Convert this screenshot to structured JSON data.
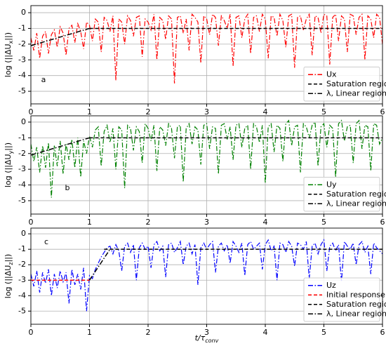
{
  "chart_data": [
    {
      "type": "line",
      "annotation": "a",
      "ylabel": [
        "log (||ΔU",
        "x",
        "||)"
      ],
      "grid": true,
      "legend": "lower right",
      "xlim": [
        0,
        6
      ],
      "ylim": [
        -5.8,
        0.45
      ],
      "xticks": [
        0,
        1,
        2,
        3,
        4,
        5,
        6
      ],
      "yticks": [
        -5,
        -4,
        -3,
        -2,
        -1,
        0
      ],
      "x": [
        0,
        0.05,
        0.1,
        0.15,
        0.2,
        0.25,
        0.3,
        0.35,
        0.4,
        0.45,
        0.5,
        0.55,
        0.6,
        0.65,
        0.7,
        0.75,
        0.8,
        0.85,
        0.9,
        0.95,
        1,
        1.05,
        1.1,
        1.15,
        1.2,
        1.25,
        1.3,
        1.35,
        1.4,
        1.45,
        1.5,
        1.55,
        1.6,
        1.65,
        1.7,
        1.75,
        1.8,
        1.85,
        1.9,
        1.95,
        2,
        2.05,
        2.1,
        2.15,
        2.2,
        2.25,
        2.3,
        2.35,
        2.4,
        2.45,
        2.5,
        2.55,
        2.6,
        2.65,
        2.7,
        2.75,
        2.8,
        2.85,
        2.9,
        2.95,
        3,
        3.05,
        3.1,
        3.15,
        3.2,
        3.25,
        3.3,
        3.35,
        3.4,
        3.45,
        3.5,
        3.55,
        3.6,
        3.65,
        3.7,
        3.75,
        3.8,
        3.85,
        3.9,
        3.95,
        4,
        4.05,
        4.1,
        4.15,
        4.2,
        4.25,
        4.3,
        4.35,
        4.4,
        4.45,
        4.5,
        4.55,
        4.6,
        4.65,
        4.7,
        4.75,
        4.8,
        4.85,
        4.9,
        4.95,
        5,
        5.05,
        5.1,
        5.15,
        5.2,
        5.25,
        5.3,
        5.35,
        5.4,
        5.45,
        5.5,
        5.55,
        5.6,
        5.65,
        5.7,
        5.75,
        5.8,
        5.85,
        5.9,
        5.95,
        6
      ],
      "series": [
        {
          "name": "Ux",
          "color": "#ff0000",
          "dash": "dashdot",
          "values": [
            -1.6,
            -2.4,
            -1.3,
            -2.9,
            -1.5,
            -1.2,
            -2.6,
            -1.4,
            -1.1,
            -2.2,
            -0.9,
            -1.3,
            -2.7,
            -1.0,
            -0.8,
            -1.9,
            -0.7,
            -1.2,
            -2.3,
            -0.6,
            -0.8,
            -1.8,
            -0.4,
            -0.6,
            -2.5,
            -0.3,
            -0.5,
            -1.2,
            -0.2,
            -4.3,
            -0.4,
            -0.6,
            -2.0,
            -0.2,
            -0.5,
            -1.5,
            -0.3,
            -0.2,
            -2.8,
            -0.4,
            -0.6,
            -1.1,
            -0.1,
            -3.0,
            -0.3,
            -0.5,
            -1.7,
            -0.2,
            -0.4,
            -4.5,
            -0.3,
            -0.2,
            -1.3,
            -0.4,
            -2.4,
            -0.1,
            -0.3,
            -0.6,
            -3.2,
            -0.2,
            -0.4,
            -1.4,
            -0.1,
            -0.3,
            -2.1,
            -0.2,
            -0.5,
            -1.0,
            -0.1,
            -3.4,
            -0.3,
            -0.2,
            -1.6,
            -0.4,
            -0.1,
            -2.6,
            -0.3,
            -0.2,
            -1.2,
            -0.1,
            -0.4,
            -2.9,
            -0.2,
            -0.3,
            -1.5,
            -0.1,
            -0.5,
            -2.2,
            -0.2,
            -0.1,
            -3.5,
            -0.3,
            -0.2,
            -1.1,
            -0.4,
            -0.1,
            -2.7,
            -0.2,
            -0.3,
            -1.3,
            -0.1,
            -0.2,
            -3.3,
            -0.3,
            -0.1,
            -1.8,
            -0.2,
            -0.4,
            -2.5,
            -0.1,
            -0.2,
            -1.4,
            -0.3,
            -0.1,
            -3.0,
            -0.2,
            -0.4,
            -1.6,
            -0.1,
            -0.3,
            -2.0
          ]
        },
        {
          "name": "Saturation region",
          "color": "#000000",
          "dash": "dashed",
          "x": [
            1,
            6
          ],
          "values": [
            -1,
            -1
          ]
        },
        {
          "name": "λ, Linear region",
          "color": "#000000",
          "dash": "dashdot",
          "x": [
            0,
            1
          ],
          "values": [
            -2.1,
            -1
          ]
        }
      ]
    },
    {
      "type": "line",
      "annotation": "b",
      "ylabel": [
        "log (||ΔU",
        "y",
        "||)"
      ],
      "grid": true,
      "legend": "lower right",
      "xlim": [
        0,
        6
      ],
      "ylim": [
        -5.85,
        0.4
      ],
      "xticks": [
        0,
        1,
        2,
        3,
        4,
        5,
        6
      ],
      "yticks": [
        -5,
        -4,
        -3,
        -2,
        -1,
        0
      ],
      "x": [
        0,
        0.05,
        0.1,
        0.15,
        0.2,
        0.25,
        0.3,
        0.35,
        0.4,
        0.45,
        0.5,
        0.55,
        0.6,
        0.65,
        0.7,
        0.75,
        0.8,
        0.85,
        0.9,
        0.95,
        1,
        1.05,
        1.1,
        1.15,
        1.2,
        1.25,
        1.3,
        1.35,
        1.4,
        1.45,
        1.5,
        1.55,
        1.6,
        1.65,
        1.7,
        1.75,
        1.8,
        1.85,
        1.9,
        1.95,
        2,
        2.05,
        2.1,
        2.15,
        2.2,
        2.25,
        2.3,
        2.35,
        2.4,
        2.45,
        2.5,
        2.55,
        2.6,
        2.65,
        2.7,
        2.75,
        2.8,
        2.85,
        2.9,
        2.95,
        3,
        3.05,
        3.1,
        3.15,
        3.2,
        3.25,
        3.3,
        3.35,
        3.4,
        3.45,
        3.5,
        3.55,
        3.6,
        3.65,
        3.7,
        3.75,
        3.8,
        3.85,
        3.9,
        3.95,
        4,
        4.05,
        4.1,
        4.15,
        4.2,
        4.25,
        4.3,
        4.35,
        4.4,
        4.45,
        4.5,
        4.55,
        4.6,
        4.65,
        4.7,
        4.75,
        4.8,
        4.85,
        4.9,
        4.95,
        5,
        5.05,
        5.1,
        5.15,
        5.2,
        5.25,
        5.3,
        5.35,
        5.4,
        5.45,
        5.5,
        5.55,
        5.6,
        5.65,
        5.7,
        5.75,
        5.8,
        5.85,
        5.9,
        5.95,
        6
      ],
      "series": [
        {
          "name": "Uy",
          "color": "#008000",
          "dash": "dashdot",
          "values": [
            -1.4,
            -2.5,
            -1.6,
            -3.2,
            -1.5,
            -2.9,
            -1.3,
            -4.8,
            -1.5,
            -2.8,
            -1.2,
            -3.3,
            -1.4,
            -2.4,
            -1.1,
            -2.9,
            -1.0,
            -3.5,
            -1.2,
            -2.0,
            -0.9,
            -1.6,
            -0.5,
            -0.3,
            -2.8,
            -0.6,
            -0.2,
            -1.3,
            -0.4,
            -3.0,
            -0.3,
            -0.5,
            -4.2,
            -0.2,
            -0.4,
            -1.8,
            -0.3,
            -0.6,
            -2.6,
            -0.1,
            -0.4,
            -1.2,
            -0.2,
            -3.1,
            -0.3,
            -0.5,
            -1.5,
            -0.1,
            -0.4,
            -2.3,
            -0.3,
            -0.2,
            -3.8,
            -0.4,
            -0.1,
            -1.4,
            -0.3,
            -0.5,
            -2.7,
            -0.2,
            -0.1,
            -1.7,
            -0.3,
            -0.4,
            -3.3,
            -0.2,
            -0.1,
            -1.1,
            -0.3,
            -2.4,
            -0.2,
            -0.1,
            -1.6,
            -0.4,
            -0.2,
            -3.0,
            -0.1,
            -0.3,
            -1.3,
            -0.2,
            -3.9,
            -0.3,
            -0.1,
            -1.9,
            -0.2,
            -0.4,
            -2.5,
            -0.1,
            0.1,
            -1.5,
            -0.3,
            -0.2,
            -3.2,
            -0.1,
            -0.3,
            -1.0,
            -0.2,
            0.0,
            -2.8,
            -0.3,
            -0.1,
            -1.6,
            -0.2,
            -0.4,
            -3.5,
            -0.1,
            0.1,
            -1.2,
            -0.3,
            -0.2,
            -2.6,
            -0.1,
            0.1,
            -1.7,
            -0.2,
            -0.3,
            -3.1,
            -0.1,
            -0.2,
            -1.4,
            -1.0
          ]
        },
        {
          "name": "Saturation region",
          "color": "#000000",
          "dash": "dashed",
          "x": [
            1,
            6
          ],
          "values": [
            -1,
            -1
          ]
        },
        {
          "name": "λ, Linear region",
          "color": "#000000",
          "dash": "dashdot",
          "x": [
            0,
            1
          ],
          "values": [
            -2.1,
            -1
          ]
        }
      ]
    },
    {
      "type": "line",
      "annotation": "c",
      "ylabel": [
        "log (||ΔU",
        "z",
        "||)"
      ],
      "xlabel": [
        "t/τ",
        "conv"
      ],
      "grid": true,
      "legend": "lower right",
      "xlim": [
        0,
        6
      ],
      "ylim": [
        -5.85,
        0.37
      ],
      "xticks": [
        0,
        1,
        2,
        3,
        4,
        5,
        6
      ],
      "yticks": [
        -5,
        -4,
        -3,
        -2,
        -1,
        0
      ],
      "x": [
        0,
        0.05,
        0.1,
        0.15,
        0.2,
        0.25,
        0.3,
        0.35,
        0.4,
        0.45,
        0.5,
        0.55,
        0.6,
        0.65,
        0.7,
        0.75,
        0.8,
        0.85,
        0.9,
        0.95,
        1,
        1.05,
        1.1,
        1.15,
        1.2,
        1.25,
        1.3,
        1.35,
        1.4,
        1.45,
        1.5,
        1.55,
        1.6,
        1.65,
        1.7,
        1.75,
        1.8,
        1.85,
        1.9,
        1.95,
        2,
        2.05,
        2.1,
        2.15,
        2.2,
        2.25,
        2.3,
        2.35,
        2.4,
        2.45,
        2.5,
        2.55,
        2.6,
        2.65,
        2.7,
        2.75,
        2.8,
        2.85,
        2.9,
        2.95,
        3,
        3.05,
        3.1,
        3.15,
        3.2,
        3.25,
        3.3,
        3.35,
        3.4,
        3.45,
        3.5,
        3.55,
        3.6,
        3.65,
        3.7,
        3.75,
        3.8,
        3.85,
        3.9,
        3.95,
        4,
        4.05,
        4.1,
        4.15,
        4.2,
        4.25,
        4.3,
        4.35,
        4.4,
        4.45,
        4.5,
        4.55,
        4.6,
        4.65,
        4.7,
        4.75,
        4.8,
        4.85,
        4.9,
        4.95,
        5,
        5.05,
        5.1,
        5.15,
        5.2,
        5.25,
        5.3,
        5.35,
        5.4,
        5.45,
        5.5,
        5.55,
        5.6,
        5.65,
        5.7,
        5.75,
        5.8,
        5.85,
        5.9,
        5.95,
        6
      ],
      "series": [
        {
          "name": "Uz",
          "color": "#0000ff",
          "dash": "dashdot",
          "values": [
            -2.6,
            -3.4,
            -2.4,
            -3.8,
            -2.5,
            -3.2,
            -2.3,
            -4.0,
            -2.6,
            -3.5,
            -2.4,
            -3.1,
            -2.5,
            -4.5,
            -2.3,
            -3.3,
            -2.6,
            -3.6,
            -2.2,
            -5.0,
            -2.7,
            -2.9,
            -2.3,
            -1.9,
            -1.5,
            -1.2,
            -0.9,
            -0.8,
            -1.3,
            -0.7,
            -1.1,
            -2.4,
            -0.8,
            -0.6,
            -1.2,
            -0.7,
            -3.0,
            -0.9,
            -0.6,
            -1.0,
            -0.8,
            -2.2,
            -0.7,
            -0.5,
            -1.1,
            -0.8,
            -2.8,
            -0.7,
            -0.6,
            -1.2,
            -0.9,
            -0.5,
            -2.0,
            -0.8,
            -0.6,
            -1.3,
            -0.7,
            -3.3,
            -0.9,
            -0.6,
            -1.0,
            -0.7,
            -0.5,
            -2.5,
            -0.8,
            -0.6,
            -1.1,
            -0.7,
            -1.9,
            -0.5,
            -0.8,
            -1.2,
            -0.6,
            -2.7,
            -0.7,
            -0.5,
            -1.0,
            -0.8,
            -0.6,
            -2.3,
            -0.7,
            -0.4,
            -1.1,
            -0.8,
            -3.0,
            -0.6,
            -0.7,
            -1.2,
            -0.5,
            -0.8,
            -2.1,
            -0.6,
            -0.7,
            -1.0,
            -0.5,
            -2.9,
            -0.8,
            -0.6,
            -1.3,
            -0.7,
            -0.4,
            -2.4,
            -0.8,
            -0.6,
            -1.1,
            -0.7,
            -3.1,
            -0.5,
            -0.8,
            -1.0,
            -0.6,
            -2.0,
            -0.7,
            -0.5,
            -1.2,
            -0.8,
            -2.6,
            -0.6,
            -0.9,
            -1.1,
            -1.3
          ]
        },
        {
          "name": "Initial response",
          "color": "#ff0000",
          "dash": "dashed",
          "x": [
            0,
            1
          ],
          "values": [
            -3,
            -3
          ]
        },
        {
          "name": "Saturation region",
          "color": "#000000",
          "dash": "dashed",
          "x": [
            1.25,
            6
          ],
          "values": [
            -1,
            -1
          ]
        },
        {
          "name": "λ, Linear region",
          "color": "#000000",
          "dash": "dashdot",
          "x": [
            1,
            1.35
          ],
          "values": [
            -3,
            -1
          ]
        }
      ]
    }
  ]
}
